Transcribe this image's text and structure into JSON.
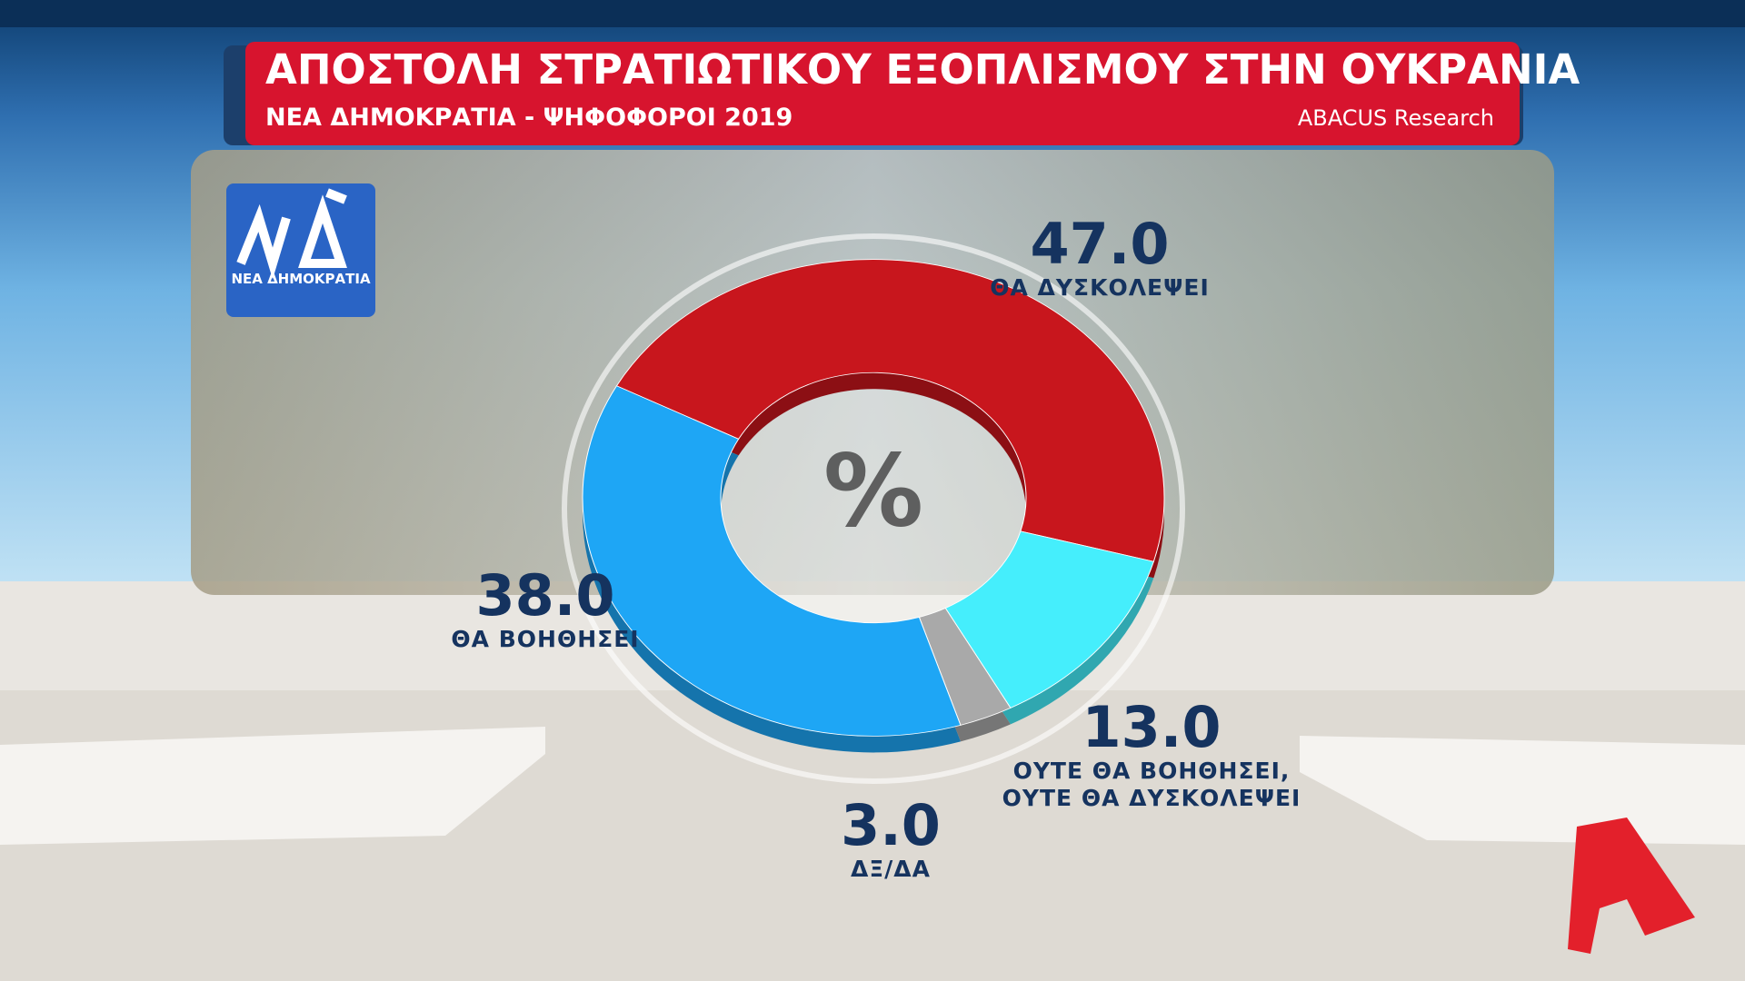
{
  "chart_data": {
    "type": "donut",
    "title": "ΑΠΟΣΤΟΛΗ ΣΤΡΑΤΙΩΤΙΚΟΥ ΕΞΟΠΛΙΣΜΟΥ ΣΤΗΝ ΟΥΚΡΑΝΙΑ",
    "subtitle": "ΝΕΑ ΔΗΜΟΚΡΑΤΙΑ - ΨΗΦΟΦΟΡΟΙ 2019",
    "source": "ABACUS Research",
    "center_label": "%",
    "categories": [
      "ΘΑ ΔΥΣΚΟΛΕΨΕΙ",
      "ΟΥΤΕ ΘΑ ΒΟΗΘΗΣΕΙ, ΟΥΤΕ ΘΑ ΔΥΣΚΟΛΕΨΕΙ",
      "ΔΞ/ΔΑ",
      "ΘΑ ΒΟΗΘΗΣΕΙ"
    ],
    "values": [
      47,
      13,
      3,
      38
    ],
    "value_labels": [
      "47.0",
      "13.0",
      "3.0",
      "38.0"
    ],
    "colors": [
      "#c8161d",
      "#45eefc",
      "#a9a9a9",
      "#1ea6f5"
    ]
  },
  "logo": {
    "text": "ΝΕΑ ΔΗΜΟΚΡΑΤΙΑ"
  }
}
